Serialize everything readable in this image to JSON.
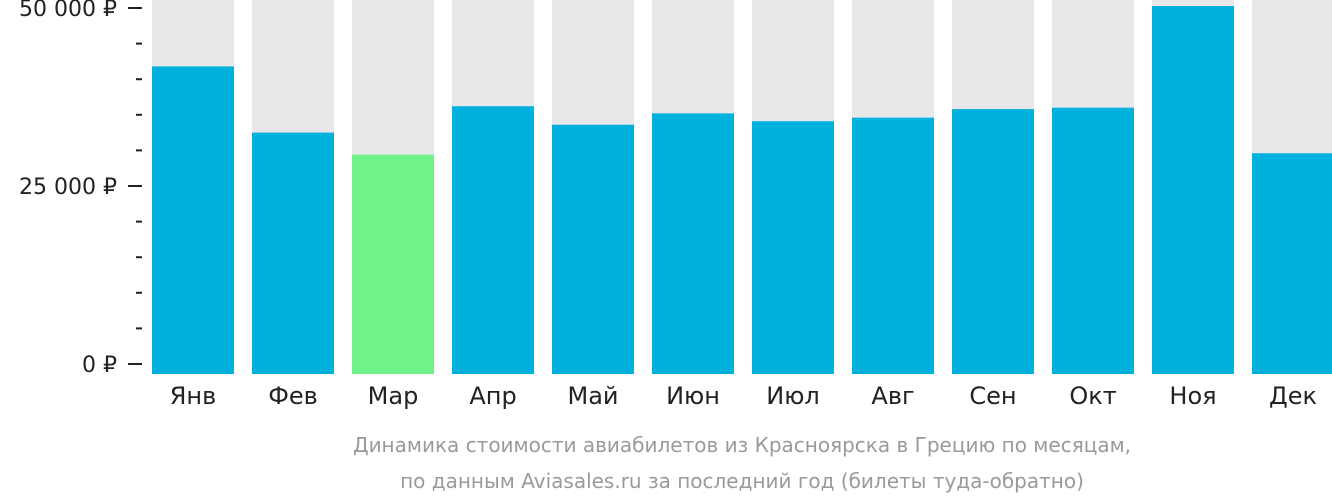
{
  "chart_data": {
    "type": "bar",
    "categories": [
      "Янв",
      "Фев",
      "Мар",
      "Апр",
      "Май",
      "Июн",
      "Июл",
      "Авг",
      "Сен",
      "Окт",
      "Ноя",
      "Дек"
    ],
    "values": [
      41800,
      32500,
      29400,
      36200,
      33600,
      35200,
      34100,
      34600,
      35800,
      36000,
      51000,
      29600
    ],
    "ylim": [
      0,
      51000
    ],
    "yticks": [
      {
        "value": 0,
        "label": "0 ₽"
      },
      {
        "value": 25000,
        "label": "25 000 ₽"
      },
      {
        "value": 50000,
        "label": "50 000 ₽"
      }
    ],
    "minor_tick_step": 5000,
    "highlight_index": 2,
    "title": "",
    "xlabel": "",
    "ylabel": "",
    "grid": false,
    "legend": "none"
  },
  "caption": {
    "line1": "Динамика стоимости авиабилетов из Красноярска в Грецию по месяцам,",
    "line2": "по данным Aviasales.ru за последний год (билеты туда-обратно)"
  },
  "colors": {
    "bar": "#00b0dd",
    "highlight": "#6ff287",
    "background_bar": "#e8e8ea",
    "axis": "#222222",
    "caption": "#9a9a9a"
  }
}
